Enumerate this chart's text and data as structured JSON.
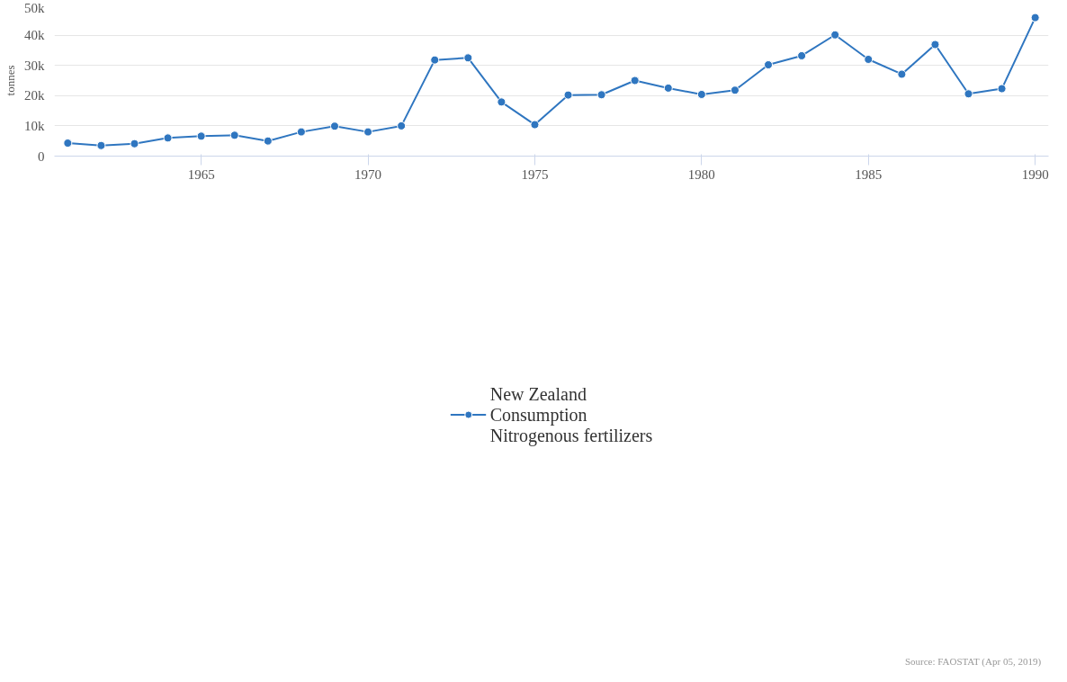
{
  "chart_data": {
    "type": "line",
    "ylabel": "tonnes",
    "x": [
      1961,
      1962,
      1963,
      1964,
      1965,
      1966,
      1967,
      1968,
      1969,
      1970,
      1971,
      1972,
      1973,
      1974,
      1975,
      1976,
      1977,
      1978,
      1979,
      1980,
      1981,
      1982,
      1983,
      1984,
      1985,
      1986,
      1987,
      1988,
      1989,
      1990
    ],
    "series": [
      {
        "name": "New Zealand\nConsumption\nNitrogenous fertilizers",
        "color": "#2f76c0",
        "values": [
          4300,
          3500,
          4100,
          6000,
          6600,
          6900,
          5000,
          8000,
          9900,
          8000,
          10000,
          31800,
          32500,
          17900,
          10400,
          20200,
          20300,
          25000,
          22500,
          20400,
          21800,
          30200,
          33200,
          40100,
          32000,
          27100,
          36900,
          20600,
          22300,
          45800
        ]
      }
    ],
    "xlim": [
      1960.6,
      1990.4
    ],
    "ylim": [
      0,
      50000
    ],
    "xticks": [
      1965,
      1970,
      1975,
      1980,
      1985,
      1990
    ],
    "yticks": [
      {
        "value": 0,
        "label": "0"
      },
      {
        "value": 10000,
        "label": "10k"
      },
      {
        "value": 20000,
        "label": "20k"
      },
      {
        "value": 30000,
        "label": "30k"
      },
      {
        "value": 40000,
        "label": "40k"
      },
      {
        "value": 50000,
        "label": "50k"
      }
    ],
    "grid": "y",
    "legend": "bottom",
    "marker": "circle",
    "line_style": "solid",
    "annotations": [
      "Source:    FAOSTAT (Apr 05, 2019)"
    ]
  }
}
